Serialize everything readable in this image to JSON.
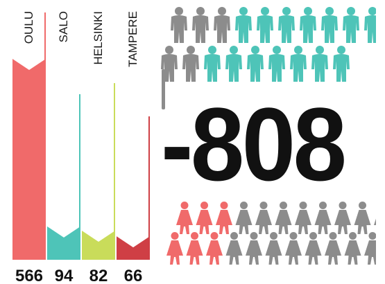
{
  "chart_data": {
    "type": "bar",
    "categories": [
      "OULU",
      "SALO",
      "HELSINKI",
      "TAMPERE"
    ],
    "values": [
      566,
      94,
      82,
      66
    ],
    "colors": [
      "#f06a6a",
      "#4ec4b8",
      "#c9dc5a",
      "#cf3f45"
    ],
    "title": "",
    "xlabel": "",
    "ylabel": "",
    "grid": false
  },
  "summary": {
    "value_label": "-808"
  },
  "pictograms": {
    "top_row_icon": "male-person-icon",
    "bottom_row_icon": "female-person-icon",
    "colors": {
      "grey": "#8c8c8c",
      "teal": "#4ec4b8",
      "pink": "#f06a6a"
    }
  }
}
